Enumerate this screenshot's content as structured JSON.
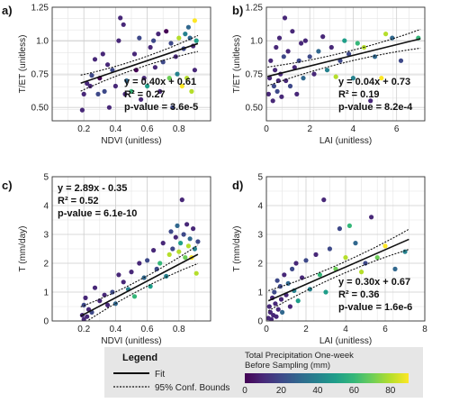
{
  "colormap": [
    "#440154",
    "#482878",
    "#3e4989",
    "#31688e",
    "#26828e",
    "#1f9e89",
    "#35b779",
    "#6ece58",
    "#b5de2b",
    "#fde725"
  ],
  "chart_data": [
    {
      "type": "scatter",
      "letter": "a)",
      "xlabel": "NDVI (unitless)",
      "ylabel": "T/ET (unitless)",
      "xlim": [
        0,
        1
      ],
      "ylim": [
        0.4,
        1.25
      ],
      "xticks": [
        0.2,
        0.4,
        0.6,
        0.8
      ],
      "yticks": [
        0.5,
        0.75,
        1.0,
        1.25
      ],
      "xtick_labels": [
        "0.2",
        "0.4",
        "0.6",
        "0.8"
      ],
      "ytick_labels": [
        "0.50",
        "0.75",
        "1.0",
        "1.25"
      ],
      "grid": true,
      "fit": {
        "slope": 0.4,
        "intercept": 0.61,
        "ci_half": 0.06,
        "x_range": [
          0.18,
          0.92
        ]
      },
      "equation": "y = 0.40x + 0.61",
      "r2": "R² = 0.27",
      "pvalue": "p-value = 3.6e-5",
      "stats_pos": "bottom-right",
      "points": [
        [
          0.19,
          0.48,
          10
        ],
        [
          0.2,
          0.6,
          12
        ],
        [
          0.22,
          0.68,
          5
        ],
        [
          0.24,
          0.66,
          8
        ],
        [
          0.25,
          0.74,
          15
        ],
        [
          0.27,
          0.86,
          6
        ],
        [
          0.29,
          0.6,
          20
        ],
        [
          0.3,
          0.72,
          4
        ],
        [
          0.32,
          0.9,
          9
        ],
        [
          0.33,
          0.62,
          15
        ],
        [
          0.35,
          0.82,
          11
        ],
        [
          0.36,
          0.5,
          7
        ],
        [
          0.38,
          0.78,
          18
        ],
        [
          0.4,
          0.66,
          6
        ],
        [
          0.42,
          1.0,
          12
        ],
        [
          0.43,
          1.17,
          5
        ],
        [
          0.45,
          1.12,
          9
        ],
        [
          0.46,
          0.6,
          14
        ],
        [
          0.47,
          0.7,
          25
        ],
        [
          0.5,
          0.62,
          60
        ],
        [
          0.52,
          0.9,
          10
        ],
        [
          0.53,
          0.78,
          3
        ],
        [
          0.55,
          1.02,
          16
        ],
        [
          0.56,
          0.56,
          6
        ],
        [
          0.58,
          0.72,
          13
        ],
        [
          0.6,
          0.66,
          45
        ],
        [
          0.62,
          0.95,
          9
        ],
        [
          0.64,
          1.0,
          15
        ],
        [
          0.65,
          0.8,
          5
        ],
        [
          0.67,
          1.05,
          12
        ],
        [
          0.68,
          0.62,
          8
        ],
        [
          0.7,
          0.84,
          16
        ],
        [
          0.72,
          1.07,
          4
        ],
        [
          0.74,
          0.72,
          72
        ],
        [
          0.75,
          0.98,
          20
        ],
        [
          0.76,
          0.5,
          18
        ],
        [
          0.78,
          0.88,
          10
        ],
        [
          0.79,
          0.75,
          35
        ],
        [
          0.8,
          1.02,
          80
        ],
        [
          0.82,
          0.66,
          85
        ],
        [
          0.83,
          0.94,
          22
        ],
        [
          0.84,
          1.05,
          40
        ],
        [
          0.85,
          0.72,
          75
        ],
        [
          0.86,
          1.1,
          30
        ],
        [
          0.87,
          1.02,
          28
        ],
        [
          0.88,
          0.62,
          80
        ],
        [
          0.89,
          0.96,
          8
        ],
        [
          0.9,
          1.15,
          85
        ],
        [
          0.9,
          0.78,
          12
        ],
        [
          0.91,
          1.0,
          45
        ]
      ]
    },
    {
      "type": "scatter",
      "letter": "b)",
      "xlabel": "LAI (unitless)",
      "ylabel": "T/ET (unitless)",
      "xlim": [
        0,
        7.3
      ],
      "ylim": [
        0.4,
        1.25
      ],
      "xticks": [
        0,
        2,
        4,
        6
      ],
      "yticks": [
        0.5,
        0.75,
        1.0,
        1.25
      ],
      "xtick_labels": [
        "0",
        "2",
        "4",
        "6"
      ],
      "ytick_labels": [
        "0.50",
        "0.75",
        "1.0",
        "1.25"
      ],
      "grid": true,
      "fit": {
        "slope": 0.04,
        "intercept": 0.73,
        "ci_half": 0.07,
        "x_range": [
          0.05,
          7.1
        ]
      },
      "equation": "y = 0.04x + 0.73",
      "r2": "R² = 0.19",
      "pvalue": "p-value = 8.2e-4",
      "stats_pos": "bottom-right",
      "points": [
        [
          0.1,
          0.6,
          10
        ],
        [
          0.15,
          0.72,
          8
        ],
        [
          0.2,
          0.85,
          12
        ],
        [
          0.3,
          0.55,
          6
        ],
        [
          0.35,
          0.66,
          15
        ],
        [
          0.4,
          0.78,
          9
        ],
        [
          0.45,
          0.95,
          5
        ],
        [
          0.5,
          0.62,
          18
        ],
        [
          0.55,
          0.7,
          12
        ],
        [
          0.6,
          1.02,
          7
        ],
        [
          0.65,
          0.75,
          14
        ],
        [
          0.7,
          0.58,
          10
        ],
        [
          0.8,
          0.88,
          20
        ],
        [
          0.85,
          1.17,
          5
        ],
        [
          0.9,
          0.7,
          11
        ],
        [
          1.0,
          0.92,
          8
        ],
        [
          1.1,
          0.66,
          16
        ],
        [
          1.2,
          1.07,
          9
        ],
        [
          1.3,
          0.8,
          13
        ],
        [
          1.4,
          0.6,
          6
        ],
        [
          1.5,
          0.85,
          22
        ],
        [
          1.6,
          0.98,
          10
        ],
        [
          1.7,
          0.72,
          30
        ],
        [
          1.8,
          1.0,
          12
        ],
        [
          2.0,
          0.88,
          15
        ],
        [
          2.2,
          0.75,
          8
        ],
        [
          2.4,
          0.92,
          25
        ],
        [
          2.6,
          1.03,
          14
        ],
        [
          2.8,
          0.78,
          40
        ],
        [
          3.0,
          0.95,
          10
        ],
        [
          3.2,
          0.73,
          75
        ],
        [
          3.4,
          0.85,
          18
        ],
        [
          3.6,
          1.0,
          45
        ],
        [
          3.8,
          0.9,
          20
        ],
        [
          4.0,
          0.72,
          35
        ],
        [
          4.2,
          0.98,
          60
        ],
        [
          4.5,
          0.95,
          82
        ],
        [
          4.8,
          0.55,
          12
        ],
        [
          5.0,
          0.88,
          28
        ],
        [
          5.3,
          0.72,
          85
        ],
        [
          5.5,
          1.05,
          80
        ],
        [
          5.8,
          1.02,
          30
        ],
        [
          6.2,
          0.85,
          18
        ],
        [
          7.0,
          1.02,
          55
        ]
      ]
    },
    {
      "type": "scatter",
      "letter": "c)",
      "xlabel": "NDVI (unitless)",
      "ylabel": "T (mm/day)",
      "xlim": [
        0,
        1
      ],
      "ylim": [
        0,
        5
      ],
      "xticks": [
        0.2,
        0.4,
        0.6,
        0.8
      ],
      "yticks": [
        0,
        1,
        2,
        3,
        4,
        5
      ],
      "xtick_labels": [
        "0.2",
        "0.4",
        "0.6",
        "0.8"
      ],
      "ytick_labels": [
        "0",
        "1",
        "2",
        "3",
        "4",
        "5"
      ],
      "grid": true,
      "fit": {
        "slope": 2.89,
        "intercept": -0.35,
        "ci_half": 0.32,
        "x_range": [
          0.18,
          0.92
        ]
      },
      "equation": "y = 2.89x - 0.35",
      "r2": "R² = 0.52",
      "pvalue": "p-value = 6.1e-10",
      "stats_pos": "top-left",
      "points": [
        [
          0.19,
          0.2,
          10
        ],
        [
          0.2,
          0.05,
          8
        ],
        [
          0.2,
          0.55,
          15
        ],
        [
          0.21,
          0.8,
          6
        ],
        [
          0.22,
          0.15,
          12
        ],
        [
          0.23,
          0.4,
          9
        ],
        [
          0.25,
          0.3,
          20
        ],
        [
          0.27,
          1.15,
          7
        ],
        [
          0.3,
          0.7,
          14
        ],
        [
          0.33,
          0.9,
          11
        ],
        [
          0.35,
          0.55,
          5
        ],
        [
          0.38,
          1.0,
          16
        ],
        [
          0.4,
          0.6,
          25
        ],
        [
          0.42,
          1.6,
          8
        ],
        [
          0.45,
          1.35,
          12
        ],
        [
          0.48,
          1.1,
          40
        ],
        [
          0.5,
          1.7,
          10
        ],
        [
          0.52,
          0.85,
          55
        ],
        [
          0.55,
          2.0,
          14
        ],
        [
          0.58,
          1.5,
          30
        ],
        [
          0.6,
          2.1,
          18
        ],
        [
          0.62,
          1.2,
          45
        ],
        [
          0.64,
          2.45,
          9
        ],
        [
          0.66,
          1.8,
          20
        ],
        [
          0.68,
          2.0,
          60
        ],
        [
          0.7,
          2.7,
          12
        ],
        [
          0.72,
          1.55,
          35
        ],
        [
          0.74,
          2.3,
          75
        ],
        [
          0.75,
          3.1,
          16
        ],
        [
          0.76,
          2.5,
          22
        ],
        [
          0.78,
          2.9,
          10
        ],
        [
          0.79,
          3.3,
          28
        ],
        [
          0.8,
          2.4,
          80
        ],
        [
          0.81,
          2.7,
          50
        ],
        [
          0.82,
          4.2,
          6
        ],
        [
          0.83,
          3.0,
          18
        ],
        [
          0.84,
          2.2,
          70
        ],
        [
          0.85,
          3.35,
          14
        ],
        [
          0.86,
          2.6,
          82
        ],
        [
          0.87,
          2.85,
          25
        ],
        [
          0.88,
          2.2,
          85
        ],
        [
          0.89,
          3.2,
          12
        ],
        [
          0.9,
          2.5,
          40
        ],
        [
          0.91,
          1.65,
          80
        ],
        [
          0.92,
          2.75,
          20
        ]
      ]
    },
    {
      "type": "scatter",
      "letter": "d)",
      "xlabel": "LAI (unitless)",
      "ylabel": "T (mm/day)",
      "xlim": [
        0,
        8
      ],
      "ylim": [
        0,
        5
      ],
      "xticks": [
        0,
        2,
        4,
        6,
        8
      ],
      "yticks": [
        0,
        1,
        2,
        3,
        4,
        5
      ],
      "xtick_labels": [
        "0",
        "2",
        "4",
        "6",
        "8"
      ],
      "ytick_labels": [
        "0",
        "1",
        "2",
        "3",
        "4",
        "5"
      ],
      "grid": true,
      "fit": {
        "slope": 0.3,
        "intercept": 0.67,
        "ci_half": 0.35,
        "x_range": [
          0.1,
          7.2
        ]
      },
      "equation": "y = 0.30x + 0.67",
      "r2": "R² = 0.36",
      "pvalue": "p-value = 1.6e-6",
      "stats_pos": "bottom-right",
      "points": [
        [
          0.1,
          0.1,
          10
        ],
        [
          0.15,
          0.5,
          8
        ],
        [
          0.2,
          0.3,
          14
        ],
        [
          0.25,
          0.05,
          6
        ],
        [
          0.3,
          0.8,
          12
        ],
        [
          0.35,
          0.2,
          9
        ],
        [
          0.4,
          1.0,
          15
        ],
        [
          0.45,
          0.6,
          7
        ],
        [
          0.5,
          0.15,
          11
        ],
        [
          0.55,
          1.4,
          18
        ],
        [
          0.6,
          0.4,
          5
        ],
        [
          0.7,
          1.2,
          20
        ],
        [
          0.75,
          0.75,
          10
        ],
        [
          0.8,
          0.3,
          25
        ],
        [
          0.9,
          1.6,
          8
        ],
        [
          1.0,
          0.9,
          13
        ],
        [
          1.1,
          1.3,
          30
        ],
        [
          1.2,
          0.5,
          9
        ],
        [
          1.3,
          1.8,
          16
        ],
        [
          1.4,
          1.05,
          40
        ],
        [
          1.5,
          2.0,
          12
        ],
        [
          1.6,
          0.7,
          50
        ],
        [
          1.8,
          1.5,
          14
        ],
        [
          2.0,
          2.1,
          22
        ],
        [
          2.2,
          1.1,
          35
        ],
        [
          2.5,
          2.3,
          10
        ],
        [
          2.7,
          1.6,
          60
        ],
        [
          2.9,
          4.2,
          6
        ],
        [
          3.0,
          1.0,
          45
        ],
        [
          3.2,
          2.5,
          18
        ],
        [
          3.5,
          1.8,
          70
        ],
        [
          3.7,
          3.2,
          15
        ],
        [
          4.0,
          2.2,
          80
        ],
        [
          4.2,
          3.3,
          55
        ],
        [
          4.5,
          2.7,
          25
        ],
        [
          4.8,
          1.7,
          82
        ],
        [
          5.0,
          2.0,
          20
        ],
        [
          5.3,
          3.6,
          12
        ],
        [
          5.6,
          2.2,
          65
        ],
        [
          6.0,
          2.6,
          85
        ],
        [
          6.5,
          1.8,
          30
        ],
        [
          7.0,
          2.4,
          40
        ]
      ]
    }
  ],
  "legend": {
    "title": "Legend",
    "fit_label": "Fit",
    "ci_label": "95% Conf. Bounds"
  },
  "colorbar": {
    "title_line1": "Total Precipitation One-week",
    "title_line2": "Before Sampling (mm)",
    "min": 0,
    "max": 90,
    "ticks": [
      "0",
      "20",
      "40",
      "60",
      "80"
    ],
    "tick_values": [
      0,
      20,
      40,
      60,
      80
    ]
  }
}
